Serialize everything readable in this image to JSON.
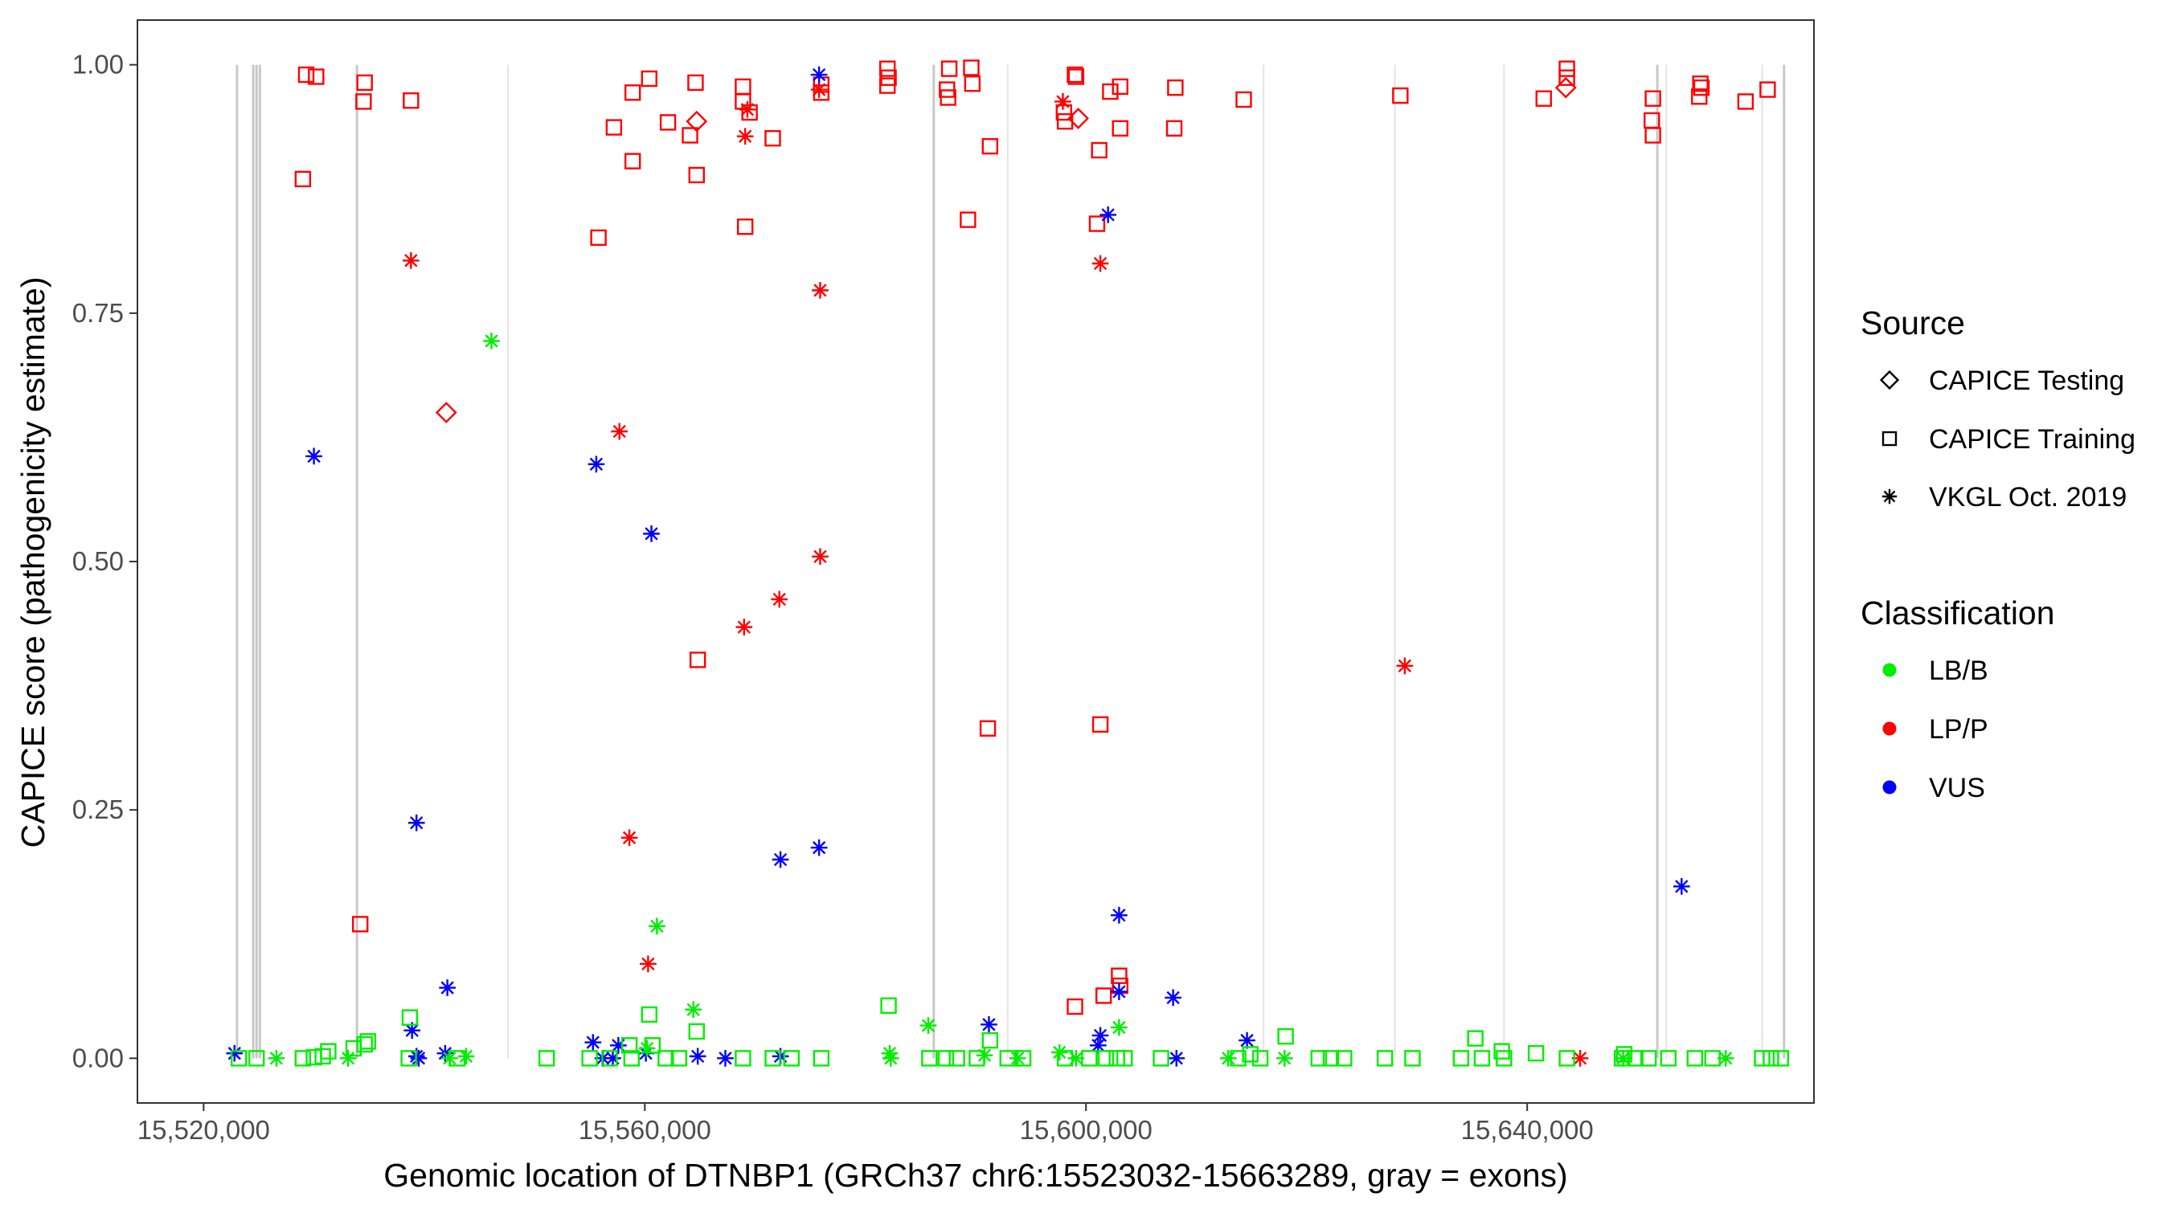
{
  "chart_data": {
    "type": "scatter",
    "title": "",
    "xlabel": "Genomic location of DTNBP1 (GRCh37 chr6:15523032-15663289, gray = exons)",
    "ylabel": "CAPICE score (pathogenicity estimate)",
    "xlim": [
      15514000,
      15666000
    ],
    "ylim": [
      -0.045,
      1.045
    ],
    "x_ticks": [
      15520000,
      15560000,
      15600000,
      15640000
    ],
    "x_tick_labels": [
      "15,520,000",
      "15,560,000",
      "15,600,000",
      "15,640,000"
    ],
    "y_ticks": [
      0,
      0.25,
      0.5,
      0.75,
      1.0
    ],
    "y_tick_labels": [
      "0.00",
      "0.25",
      "0.50",
      "0.75",
      "1.00"
    ],
    "grid": false,
    "legend_position": "right",
    "exons": [
      {
        "x": 15523032,
        "shade": "dark"
      },
      {
        "x": 15524500,
        "shade": "dark"
      },
      {
        "x": 15524800,
        "shade": "dark"
      },
      {
        "x": 15525100,
        "shade": "dark"
      },
      {
        "x": 15533900,
        "shade": "dark"
      },
      {
        "x": 15547600,
        "shade": "light"
      },
      {
        "x": 15586200,
        "shade": "dark"
      },
      {
        "x": 15592900,
        "shade": "light"
      },
      {
        "x": 15616100,
        "shade": "light"
      },
      {
        "x": 15628000,
        "shade": "light"
      },
      {
        "x": 15637900,
        "shade": "light"
      },
      {
        "x": 15651800,
        "shade": "dark"
      },
      {
        "x": 15652600,
        "shade": "light"
      },
      {
        "x": 15661300,
        "shade": "light"
      },
      {
        "x": 15663289,
        "shade": "dark"
      }
    ],
    "legends": {
      "source": {
        "title": "Source",
        "items": [
          {
            "label": "CAPICE Testing",
            "shape": "diamond"
          },
          {
            "label": "CAPICE Training",
            "shape": "square"
          },
          {
            "label": "VKGL Oct. 2019",
            "shape": "asterisk"
          }
        ]
      },
      "classification": {
        "title": "Classification",
        "items": [
          {
            "label": "LB/B",
            "color": "#00ee00"
          },
          {
            "label": "LP/P",
            "color": "#ff0000"
          },
          {
            "label": "VUS",
            "color": "#0000ff"
          }
        ]
      }
    },
    "series": [
      {
        "source": "CAPICE Training",
        "classification": "LP/P",
        "shape": "square",
        "color": "#ff0000",
        "points": [
          [
            15529300,
            0.99
          ],
          [
            15530200,
            0.988
          ],
          [
            15534600,
            0.982
          ],
          [
            15534500,
            0.963
          ],
          [
            15538800,
            0.964
          ],
          [
            15529000,
            0.885
          ],
          [
            15534200,
            0.135
          ],
          [
            15558900,
            0.972
          ],
          [
            15560400,
            0.986
          ],
          [
            15557200,
            0.937
          ],
          [
            15562100,
            0.942
          ],
          [
            15564600,
            0.982
          ],
          [
            15564100,
            0.929
          ],
          [
            15558900,
            0.903
          ],
          [
            15564700,
            0.889
          ],
          [
            15555800,
            0.826
          ],
          [
            15568900,
            0.978
          ],
          [
            15568900,
            0.963
          ],
          [
            15569500,
            0.952
          ],
          [
            15571600,
            0.926
          ],
          [
            15569100,
            0.837
          ],
          [
            15576000,
            0.98
          ],
          [
            15576000,
            0.972
          ],
          [
            15582000,
            0.996
          ],
          [
            15582100,
            0.987
          ],
          [
            15582000,
            0.979
          ],
          [
            15587600,
            0.996
          ],
          [
            15587400,
            0.975
          ],
          [
            15589600,
            0.997
          ],
          [
            15587500,
            0.967
          ],
          [
            15589700,
            0.981
          ],
          [
            15591300,
            0.918
          ],
          [
            15589300,
            0.844
          ],
          [
            15564800,
            0.401
          ],
          [
            15591100,
            0.332
          ],
          [
            15598100,
            0.943
          ],
          [
            15598000,
            0.952
          ],
          [
            15599100,
            0.988
          ],
          [
            15599000,
            0.99
          ],
          [
            15601200,
            0.914
          ],
          [
            15602200,
            0.973
          ],
          [
            15603100,
            0.978
          ],
          [
            15603100,
            0.936
          ],
          [
            15608100,
            0.977
          ],
          [
            15608000,
            0.936
          ],
          [
            15601000,
            0.84
          ],
          [
            15601300,
            0.336
          ],
          [
            15603000,
            0.083
          ],
          [
            15603100,
            0.073
          ],
          [
            15601600,
            0.063
          ],
          [
            15599000,
            0.052
          ],
          [
            15614300,
            0.965
          ],
          [
            15628500,
            0.969
          ],
          [
            15641500,
            0.966
          ],
          [
            15643600,
            0.996
          ],
          [
            15643600,
            0.987
          ],
          [
            15651400,
            0.966
          ],
          [
            15651300,
            0.944
          ],
          [
            15651400,
            0.929
          ],
          [
            15655700,
            0.981
          ],
          [
            15655800,
            0.977
          ],
          [
            15655600,
            0.968
          ],
          [
            15659800,
            0.963
          ],
          [
            15661800,
            0.975
          ]
        ]
      },
      {
        "source": "CAPICE Testing",
        "classification": "LP/P",
        "shape": "diamond",
        "color": "#ff0000",
        "points": [
          [
            15542000,
            0.65
          ],
          [
            15564700,
            0.943
          ],
          [
            15599300,
            0.946
          ],
          [
            15643500,
            0.977
          ]
        ]
      },
      {
        "source": "VKGL Oct. 2019",
        "classification": "LP/P",
        "shape": "asterisk",
        "color": "#ff0000",
        "points": [
          [
            15538800,
            0.803
          ],
          [
            15557700,
            0.631
          ],
          [
            15558600,
            0.222
          ],
          [
            15560300,
            0.095
          ],
          [
            15569300,
            0.955
          ],
          [
            15569100,
            0.928
          ],
          [
            15569000,
            0.434
          ],
          [
            15572200,
            0.462
          ],
          [
            15575800,
            0.975
          ],
          [
            15575900,
            0.773
          ],
          [
            15575900,
            0.505
          ],
          [
            15597900,
            0.963
          ],
          [
            15601300,
            0.8
          ],
          [
            15628900,
            0.395
          ],
          [
            15644800,
            0.0
          ]
        ]
      },
      {
        "source": "VKGL Oct. 2019",
        "classification": "VUS",
        "shape": "asterisk",
        "color": "#0000ff",
        "points": [
          [
            15522800,
            0.005
          ],
          [
            15530000,
            0.606
          ],
          [
            15539300,
            0.237
          ],
          [
            15538900,
            0.028
          ],
          [
            15539300,
            0.002
          ],
          [
            15539500,
            0.0
          ],
          [
            15542100,
            0.071
          ],
          [
            15541900,
            0.005
          ],
          [
            15555600,
            0.598
          ],
          [
            15555300,
            0.016
          ],
          [
            15556200,
            0.0
          ],
          [
            15557100,
            0.0
          ],
          [
            15557600,
            0.013
          ],
          [
            15560600,
            0.528
          ],
          [
            15560100,
            0.005
          ],
          [
            15564800,
            0.002
          ],
          [
            15567300,
            0.0
          ],
          [
            15572300,
            0.2
          ],
          [
            15572300,
            0.002
          ],
          [
            15575800,
            0.212
          ],
          [
            15575800,
            0.99
          ],
          [
            15591200,
            0.034
          ],
          [
            15602000,
            0.849
          ],
          [
            15603000,
            0.144
          ],
          [
            15603000,
            0.067
          ],
          [
            15601300,
            0.023
          ],
          [
            15601100,
            0.013
          ],
          [
            15607900,
            0.061
          ],
          [
            15608200,
            0.0
          ],
          [
            15614600,
            0.018
          ],
          [
            15654000,
            0.173
          ]
        ]
      },
      {
        "source": "VKGL Oct. 2019",
        "classification": "LB/B",
        "shape": "asterisk",
        "color": "#00ee00",
        "points": [
          [
            15546100,
            0.722
          ],
          [
            15561100,
            0.133
          ],
          [
            15564400,
            0.049
          ],
          [
            15526600,
            0.0
          ],
          [
            15533100,
            0.0
          ],
          [
            15542300,
            0.0
          ],
          [
            15543800,
            0.002
          ],
          [
            15560200,
            0.01
          ],
          [
            15582200,
            0.005
          ],
          [
            15582300,
            0.0
          ],
          [
            15585700,
            0.033
          ],
          [
            15590800,
            0.003
          ],
          [
            15593800,
            0.0
          ],
          [
            15597600,
            0.006
          ],
          [
            15599100,
            0.0
          ],
          [
            15603000,
            0.031
          ],
          [
            15612900,
            0.0
          ],
          [
            15618000,
            0.0
          ],
          [
            15648700,
            0.0
          ],
          [
            15658000,
            0.0
          ]
        ]
      },
      {
        "source": "CAPICE Training",
        "classification": "LB/B",
        "shape": "square",
        "color": "#00ee00",
        "points": [
          [
            15523200,
            0.0
          ],
          [
            15524800,
            0.0
          ],
          [
            15529000,
            0.0
          ],
          [
            15530000,
            0.001
          ],
          [
            15530800,
            0.002
          ],
          [
            15531300,
            0.007
          ],
          [
            15533600,
            0.01
          ],
          [
            15534600,
            0.014
          ],
          [
            15534900,
            0.017
          ],
          [
            15538700,
            0.041
          ],
          [
            15538600,
            0.0
          ],
          [
            15543000,
            0.0
          ],
          [
            15551100,
            0.0
          ],
          [
            15555000,
            0.0
          ],
          [
            15556800,
            0.0
          ],
          [
            15558600,
            0.013
          ],
          [
            15558800,
            0.0
          ],
          [
            15560400,
            0.044
          ],
          [
            15560700,
            0.013
          ],
          [
            15561900,
            0.0
          ],
          [
            15563100,
            0.0
          ],
          [
            15564700,
            0.027
          ],
          [
            15568900,
            0.0
          ],
          [
            15571600,
            0.0
          ],
          [
            15573300,
            0.0
          ],
          [
            15576000,
            0.0
          ],
          [
            15582100,
            0.053
          ],
          [
            15585800,
            0.0
          ],
          [
            15587300,
            0.0
          ],
          [
            15588300,
            0.0
          ],
          [
            15590100,
            0.0
          ],
          [
            15591300,
            0.018
          ],
          [
            15592900,
            0.0
          ],
          [
            15594300,
            0.0
          ],
          [
            15598100,
            0.0
          ],
          [
            15600300,
            0.0
          ],
          [
            15601800,
            0.0
          ],
          [
            15602800,
            0.0
          ],
          [
            15603500,
            0.0
          ],
          [
            15606800,
            0.0
          ],
          [
            15613800,
            0.0
          ],
          [
            15614900,
            0.004
          ],
          [
            15615800,
            0.0
          ],
          [
            15618100,
            0.022
          ],
          [
            15621100,
            0.0
          ],
          [
            15622200,
            0.0
          ],
          [
            15623400,
            0.0
          ],
          [
            15627100,
            0.0
          ],
          [
            15629600,
            0.0
          ],
          [
            15634000,
            0.0
          ],
          [
            15635300,
            0.02
          ],
          [
            15635900,
            0.0
          ],
          [
            15637700,
            0.007
          ],
          [
            15637900,
            0.0
          ],
          [
            15640800,
            0.005
          ],
          [
            15643600,
            0.0
          ],
          [
            15648600,
            0.0
          ],
          [
            15648800,
            0.004
          ],
          [
            15649800,
            0.0
          ],
          [
            15651000,
            0.0
          ],
          [
            15652800,
            0.0
          ],
          [
            15655200,
            0.0
          ],
          [
            15656800,
            0.0
          ],
          [
            15661300,
            0.0
          ],
          [
            15662100,
            0.0
          ],
          [
            15663000,
            0.0
          ]
        ]
      }
    ]
  }
}
